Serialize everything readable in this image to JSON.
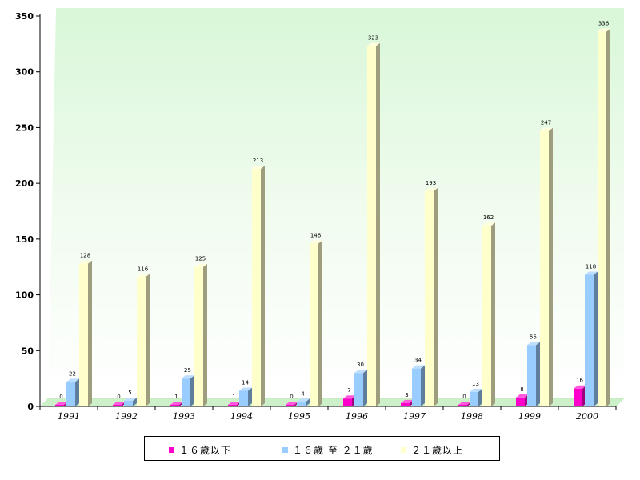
{
  "chart_data": {
    "type": "bar",
    "categories": [
      "1991",
      "1992",
      "1993",
      "1994",
      "1995",
      "1996",
      "1997",
      "1998",
      "1999",
      "2000"
    ],
    "series": [
      {
        "name": "１６歲以下",
        "color": "#ff00cc",
        "values": [
          0,
          0,
          1,
          1,
          0,
          7,
          3,
          0,
          8,
          16
        ]
      },
      {
        "name": "１６歲 至 ２１歲",
        "color": "#99ccff",
        "values": [
          22,
          5,
          25,
          14,
          4,
          30,
          34,
          13,
          55,
          118
        ]
      },
      {
        "name": "２１歲以上",
        "color": "#ffffcc",
        "values": [
          128,
          116,
          125,
          213,
          146,
          323,
          193,
          162,
          247,
          336
        ]
      }
    ],
    "ylim": [
      0,
      350
    ],
    "yticks": [
      "0",
      "50",
      "100",
      "150",
      "200",
      "250",
      "300",
      "350"
    ],
    "grid": false,
    "legend_position": "bottom"
  }
}
